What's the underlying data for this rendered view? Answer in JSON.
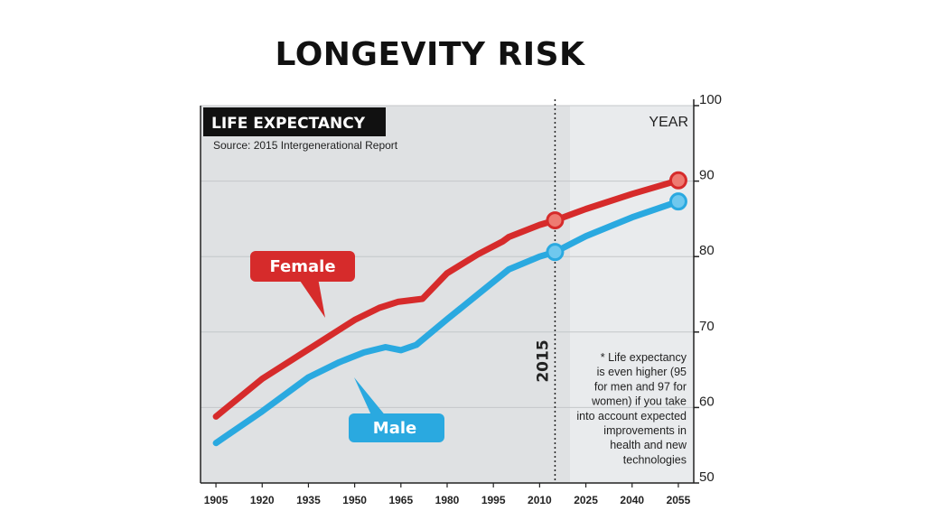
{
  "slide": {
    "title": "LONGEVITY RISK"
  },
  "colors": {
    "female": "#d62b2b",
    "male": "#2aa9e0",
    "badge_female": "#d62b2b",
    "badge_male": "#2aa9e0",
    "panel": "#dfe1e3",
    "panel_future": "#e9ebed"
  },
  "chart_data": {
    "type": "line",
    "title": "LIFE EXPECTANCY",
    "subtitle": "Source: 2015 Intergenerational Report",
    "ylabel": "YEAR",
    "ylim": [
      50,
      100
    ],
    "yticks": [
      50,
      60,
      70,
      80,
      90,
      100
    ],
    "xlim": [
      1900,
      2060
    ],
    "xticks": [
      1905,
      1920,
      1935,
      1950,
      1965,
      1980,
      1995,
      2010,
      2025,
      2040,
      2055
    ],
    "divider_x": 2015,
    "divider_label": "2015",
    "series": [
      {
        "name": "Female",
        "x": [
          1905,
          1920,
          1935,
          1950,
          1958,
          1964,
          1972,
          1980,
          1990,
          1998,
          2000,
          2010,
          2015,
          2025,
          2040,
          2055
        ],
        "y": [
          58.8,
          63.8,
          67.7,
          71.6,
          73.2,
          74.0,
          74.4,
          77.8,
          80.3,
          82.0,
          82.6,
          84.2,
          84.8,
          86.3,
          88.3,
          90.1
        ],
        "marker_x": [
          2015,
          2055
        ],
        "marker_y": [
          84.8,
          90.1
        ]
      },
      {
        "name": "Male",
        "x": [
          1905,
          1920,
          1935,
          1945,
          1953,
          1960,
          1965,
          1970,
          1980,
          1990,
          2000,
          2010,
          2015,
          2025,
          2040,
          2055
        ],
        "y": [
          55.3,
          59.5,
          64.0,
          66.0,
          67.3,
          68.0,
          67.6,
          68.3,
          71.7,
          75.0,
          78.3,
          80.0,
          80.6,
          82.7,
          85.2,
          87.3
        ],
        "marker_x": [
          2015,
          2055
        ],
        "marker_y": [
          80.6,
          87.3
        ]
      }
    ],
    "annotation": [
      "* Life expectancy",
      "is even higher (95",
      "for men and 97 for",
      "women) if you take",
      "into account expected",
      "improvements in",
      "health and new",
      "technologies"
    ]
  }
}
